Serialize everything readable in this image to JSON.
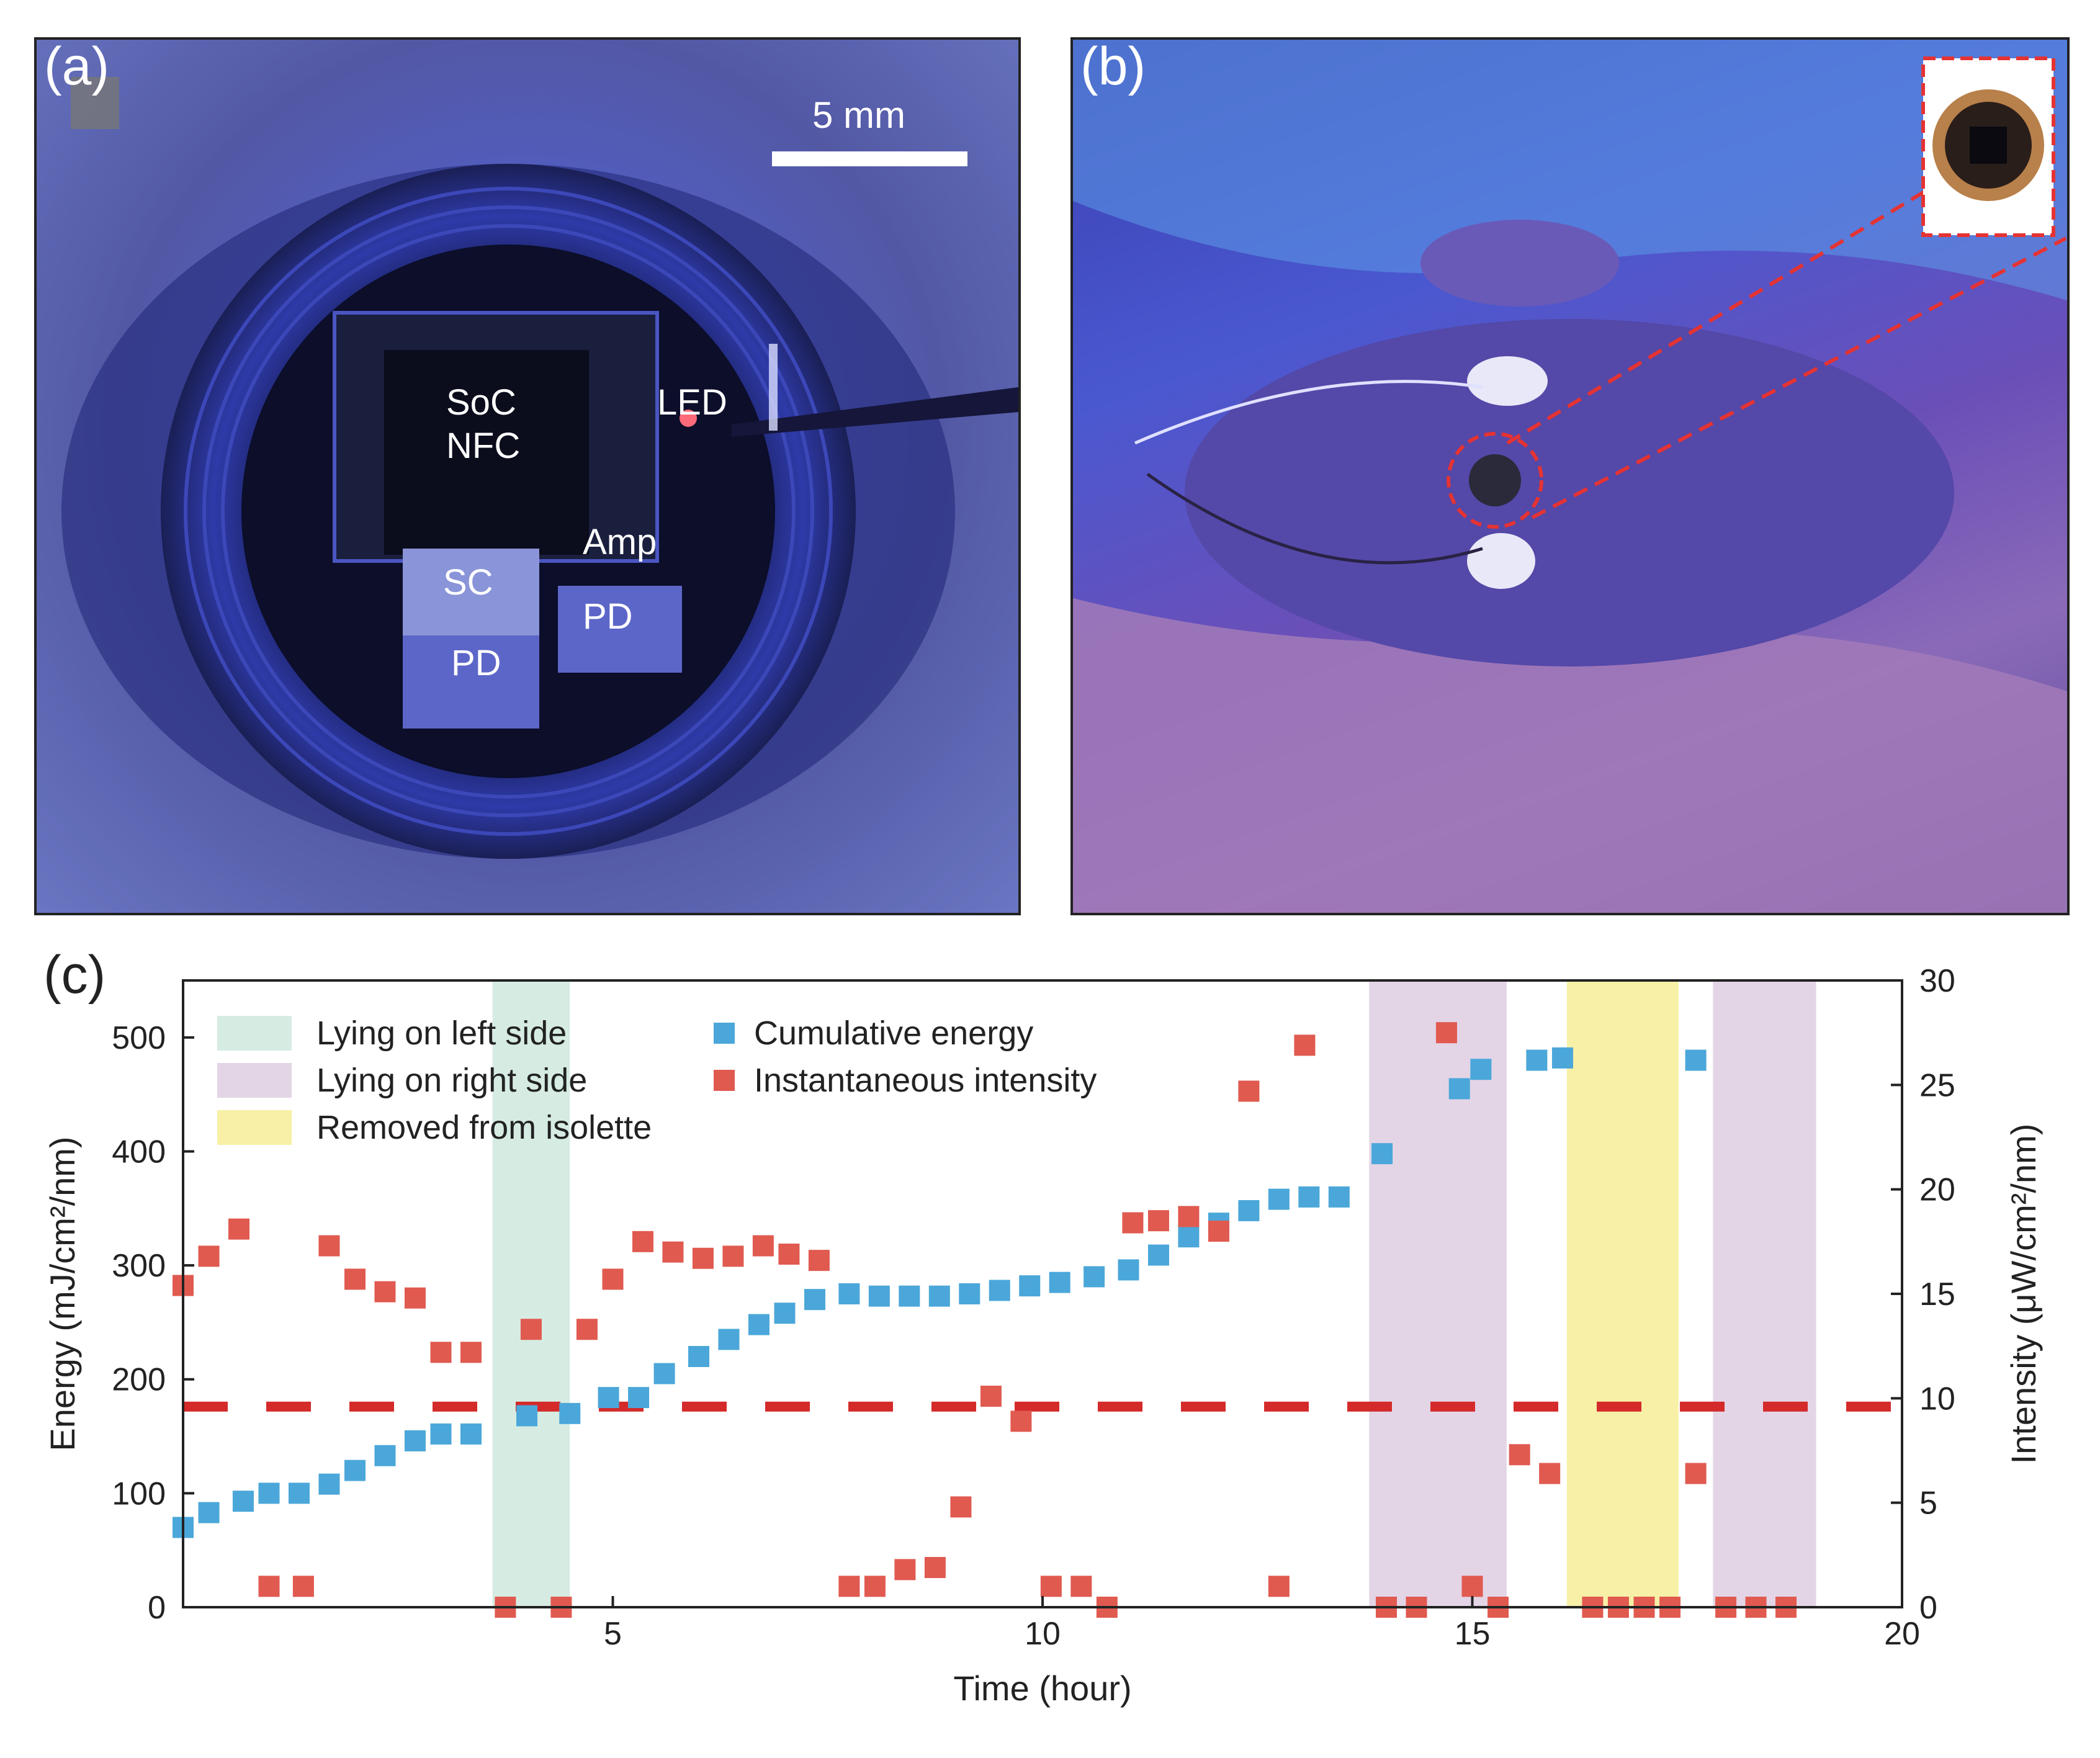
{
  "panel_a": {
    "label": "(a)",
    "scale_bar": "5 mm",
    "components": {
      "soc": "SoC",
      "nfc": "NFC",
      "led": "LED",
      "amp": "Amp",
      "sc": "SC",
      "pd_left": "PD",
      "pd_right": "PD"
    }
  },
  "panel_b": {
    "label": "(b)"
  },
  "panel_c": {
    "label": "(c)"
  },
  "chart_data": {
    "type": "scatter",
    "xlabel": "Time (hour)",
    "ylabel_left": "Energy (mJ/cm²/nm)",
    "ylabel_right": "Intensity (μW/cm²/nm)",
    "xlim": [
      0,
      20
    ],
    "ylim_left": [
      0,
      550
    ],
    "ylim_right": [
      0,
      30
    ],
    "x_ticks": [
      5,
      10,
      15,
      20
    ],
    "y_ticks_left": [
      0,
      100,
      200,
      300,
      400,
      500
    ],
    "y_ticks_right": [
      0,
      5,
      10,
      15,
      20,
      25,
      30
    ],
    "threshold_intensity": 9.6,
    "regions": [
      {
        "name": "Lying on left side",
        "start": 3.6,
        "end": 4.5,
        "color": "#d6ece3"
      },
      {
        "name": "Lying on right side",
        "start": 13.8,
        "end": 15.4,
        "color": "#e3d5e6"
      },
      {
        "name": "Removed from isolette",
        "start": 16.1,
        "end": 17.4,
        "color": "#f7f0a6"
      },
      {
        "name": "Lying on right side",
        "start": 17.8,
        "end": 19.0,
        "color": "#e3d5e6"
      }
    ],
    "legend": {
      "left": [
        "Lying on left side",
        "Lying on right side",
        "Removed from isolette"
      ],
      "right": [
        "Cumulative energy",
        "Instantaneous intensity"
      ]
    },
    "series": [
      {
        "name": "Cumulative energy",
        "axis": "left",
        "color": "#4ba7d9",
        "points": [
          [
            0,
            70
          ],
          [
            0.3,
            83
          ],
          [
            0.7,
            93
          ],
          [
            1.0,
            100
          ],
          [
            1.35,
            100
          ],
          [
            1.7,
            108
          ],
          [
            2.0,
            120
          ],
          [
            2.35,
            133
          ],
          [
            2.7,
            146
          ],
          [
            3.0,
            152
          ],
          [
            3.35,
            152
          ],
          [
            4.0,
            168
          ],
          [
            4.5,
            170
          ],
          [
            4.95,
            184
          ],
          [
            5.3,
            184
          ],
          [
            5.6,
            205
          ],
          [
            6.0,
            220
          ],
          [
            6.35,
            235
          ],
          [
            6.7,
            248
          ],
          [
            7.0,
            258
          ],
          [
            7.35,
            270
          ],
          [
            7.75,
            275
          ],
          [
            8.1,
            273
          ],
          [
            8.45,
            273
          ],
          [
            8.8,
            273
          ],
          [
            9.15,
            275
          ],
          [
            9.5,
            278
          ],
          [
            9.85,
            282
          ],
          [
            10.2,
            285
          ],
          [
            10.6,
            290
          ],
          [
            11.0,
            296
          ],
          [
            11.35,
            309
          ],
          [
            11.7,
            325
          ],
          [
            12.05,
            337
          ],
          [
            12.4,
            348
          ],
          [
            12.75,
            358
          ],
          [
            13.1,
            360
          ],
          [
            13.45,
            360
          ],
          [
            13.95,
            398
          ],
          [
            14.85,
            455
          ],
          [
            15.1,
            472
          ],
          [
            15.75,
            480
          ],
          [
            16.05,
            482
          ],
          [
            17.6,
            480
          ]
        ]
      },
      {
        "name": "Instantaneous intensity",
        "axis": "right",
        "color": "#e05a50",
        "points": [
          [
            0,
            15.4
          ],
          [
            0.3,
            16.8
          ],
          [
            0.65,
            18.1
          ],
          [
            1.0,
            1.0
          ],
          [
            1.4,
            1.0
          ],
          [
            1.7,
            17.3
          ],
          [
            2.0,
            15.7
          ],
          [
            2.35,
            15.1
          ],
          [
            2.7,
            14.8
          ],
          [
            3.0,
            12.2
          ],
          [
            3.35,
            12.2
          ],
          [
            3.75,
            0
          ],
          [
            4.05,
            13.3
          ],
          [
            4.4,
            0
          ],
          [
            4.7,
            13.3
          ],
          [
            5.0,
            15.7
          ],
          [
            5.35,
            17.5
          ],
          [
            5.7,
            17.0
          ],
          [
            6.05,
            16.7
          ],
          [
            6.4,
            16.8
          ],
          [
            6.75,
            17.3
          ],
          [
            7.05,
            16.9
          ],
          [
            7.4,
            16.6
          ],
          [
            7.75,
            1.0
          ],
          [
            8.05,
            1.0
          ],
          [
            8.4,
            1.8
          ],
          [
            8.75,
            1.9
          ],
          [
            9.05,
            4.8
          ],
          [
            9.4,
            10.1
          ],
          [
            9.75,
            8.9
          ],
          [
            10.1,
            1.0
          ],
          [
            10.45,
            1.0
          ],
          [
            10.75,
            0
          ],
          [
            11.05,
            18.4
          ],
          [
            11.35,
            18.5
          ],
          [
            11.7,
            18.7
          ],
          [
            12.05,
            18.0
          ],
          [
            12.4,
            24.7
          ],
          [
            12.75,
            1.0
          ],
          [
            13.05,
            26.9
          ],
          [
            14.0,
            0
          ],
          [
            14.35,
            0
          ],
          [
            14.7,
            27.5
          ],
          [
            15.0,
            1.0
          ],
          [
            15.3,
            0
          ],
          [
            15.55,
            7.3
          ],
          [
            15.9,
            6.4
          ],
          [
            16.4,
            0
          ],
          [
            16.7,
            0
          ],
          [
            17.0,
            0
          ],
          [
            17.3,
            0
          ],
          [
            17.6,
            6.4
          ],
          [
            17.95,
            0
          ],
          [
            18.3,
            0
          ],
          [
            18.65,
            0
          ]
        ]
      }
    ]
  }
}
